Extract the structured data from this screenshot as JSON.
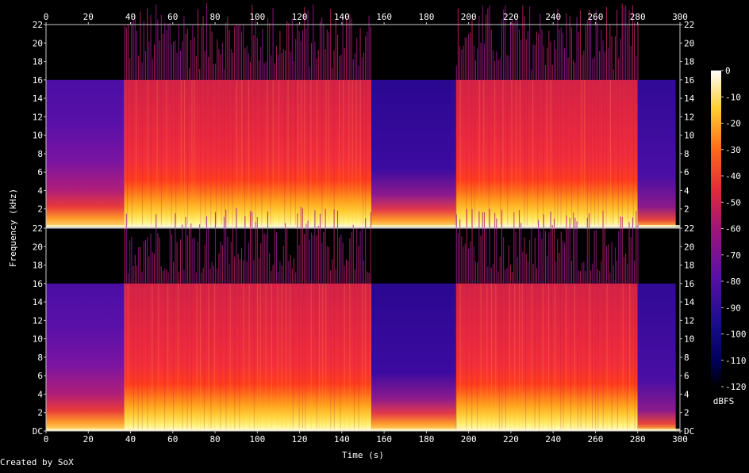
{
  "chart_data": {
    "type": "heatmap",
    "x_label": "Time (s)",
    "y_label": "Frequency (kHz)",
    "x_ticks": [
      "0",
      "20",
      "40",
      "60",
      "80",
      "100",
      "120",
      "140",
      "160",
      "180",
      "200",
      "220",
      "240",
      "260",
      "280",
      "300"
    ],
    "xlim": [
      0,
      300
    ],
    "ylim_khz": [
      0,
      22
    ],
    "y_ticks_top": [
      "22",
      "20",
      "18",
      "16",
      "14",
      "12",
      "10",
      "8",
      "6",
      "4",
      "2"
    ],
    "y_ticks_bottom": [
      "22",
      "20",
      "18",
      "16",
      "14",
      "12",
      "10",
      "8",
      "6",
      "4",
      "2",
      "DC"
    ],
    "colorbar": {
      "unit": "dBFS",
      "ticks": [
        "0",
        "-10",
        "-20",
        "-30",
        "-40",
        "-50",
        "-60",
        "-70",
        "-80",
        "-90",
        "-100",
        "-110",
        "-120"
      ],
      "range": [
        -120,
        0
      ]
    },
    "channels": 2,
    "segments_s": [
      {
        "start": 0,
        "end": 37,
        "level": "quiet"
      },
      {
        "start": 37,
        "end": 154,
        "level": "loud"
      },
      {
        "start": 154,
        "end": 194,
        "level": "quiet-bridge"
      },
      {
        "start": 194,
        "end": 280,
        "level": "loud"
      },
      {
        "start": 280,
        "end": 298,
        "level": "fade"
      }
    ],
    "lowpass_cutoff_khz": 16
  },
  "footer": {
    "credit": "Created by SoX"
  },
  "colors": {
    "background": "#000000",
    "text": "#ffffff",
    "axis": "#c8c8c8"
  }
}
